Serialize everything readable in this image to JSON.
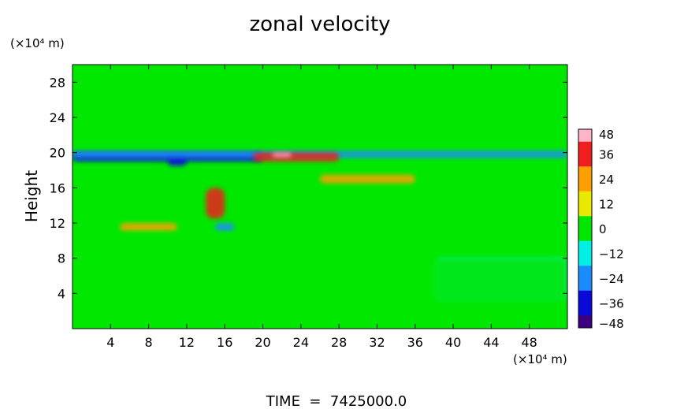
{
  "chart_data": {
    "type": "heatmap",
    "title": "zonal velocity",
    "xlabel": "",
    "ylabel": "Height",
    "x_unit": "(×10⁴ m)",
    "y_unit": "(×10⁴ m)",
    "xlim": [
      0,
      52
    ],
    "ylim": [
      0,
      30
    ],
    "x_ticks": [
      4,
      8,
      12,
      16,
      20,
      24,
      28,
      32,
      36,
      40,
      44,
      48
    ],
    "y_ticks": [
      4,
      8,
      12,
      16,
      20,
      24,
      28
    ],
    "colorbar": {
      "min": -48,
      "max": 48,
      "tick_values": [
        48,
        36,
        24,
        12,
        0,
        -12,
        -24,
        -36,
        -48
      ],
      "tick_labels": [
        "48",
        "36",
        "24",
        "12",
        "0",
        "−12",
        "−24",
        "−36",
        "−48"
      ],
      "colors": [
        "#3d0080",
        "#0a0ad8",
        "#1a8cff",
        "#00f0e6",
        "#00e800",
        "#eaea00",
        "#ffa000",
        "#f01e1e",
        "#ffb4c8"
      ]
    },
    "background_value": 0,
    "features": [
      {
        "x": [
          0,
          20
        ],
        "y": [
          19,
          20
        ],
        "value": -36
      },
      {
        "x": [
          10,
          12
        ],
        "y": [
          18.5,
          19.5
        ],
        "value": -42
      },
      {
        "x": [
          0,
          52
        ],
        "y": [
          19.4,
          20.2
        ],
        "value": -24
      },
      {
        "x": [
          19,
          28
        ],
        "y": [
          19,
          20
        ],
        "value": 36
      },
      {
        "x": [
          21,
          23
        ],
        "y": [
          19.5,
          20
        ],
        "value": 46
      },
      {
        "x": [
          26,
          36
        ],
        "y": [
          16.5,
          17.5
        ],
        "value": 24
      },
      {
        "x": [
          14,
          16
        ],
        "y": [
          12.5,
          16
        ],
        "value": 36
      },
      {
        "x": [
          15,
          17
        ],
        "y": [
          11,
          12
        ],
        "value": -30
      },
      {
        "x": [
          5,
          11
        ],
        "y": [
          11,
          12
        ],
        "value": 18
      },
      {
        "x": [
          0,
          52
        ],
        "y": [
          10,
          11
        ],
        "value": -6
      },
      {
        "x": [
          38,
          52
        ],
        "y": [
          3,
          8
        ],
        "value": -10
      },
      {
        "x": [
          0,
          52
        ],
        "y": [
          0,
          8
        ],
        "value": 4
      }
    ]
  },
  "footer": {
    "time_label": "TIME  =  7425000.0"
  }
}
